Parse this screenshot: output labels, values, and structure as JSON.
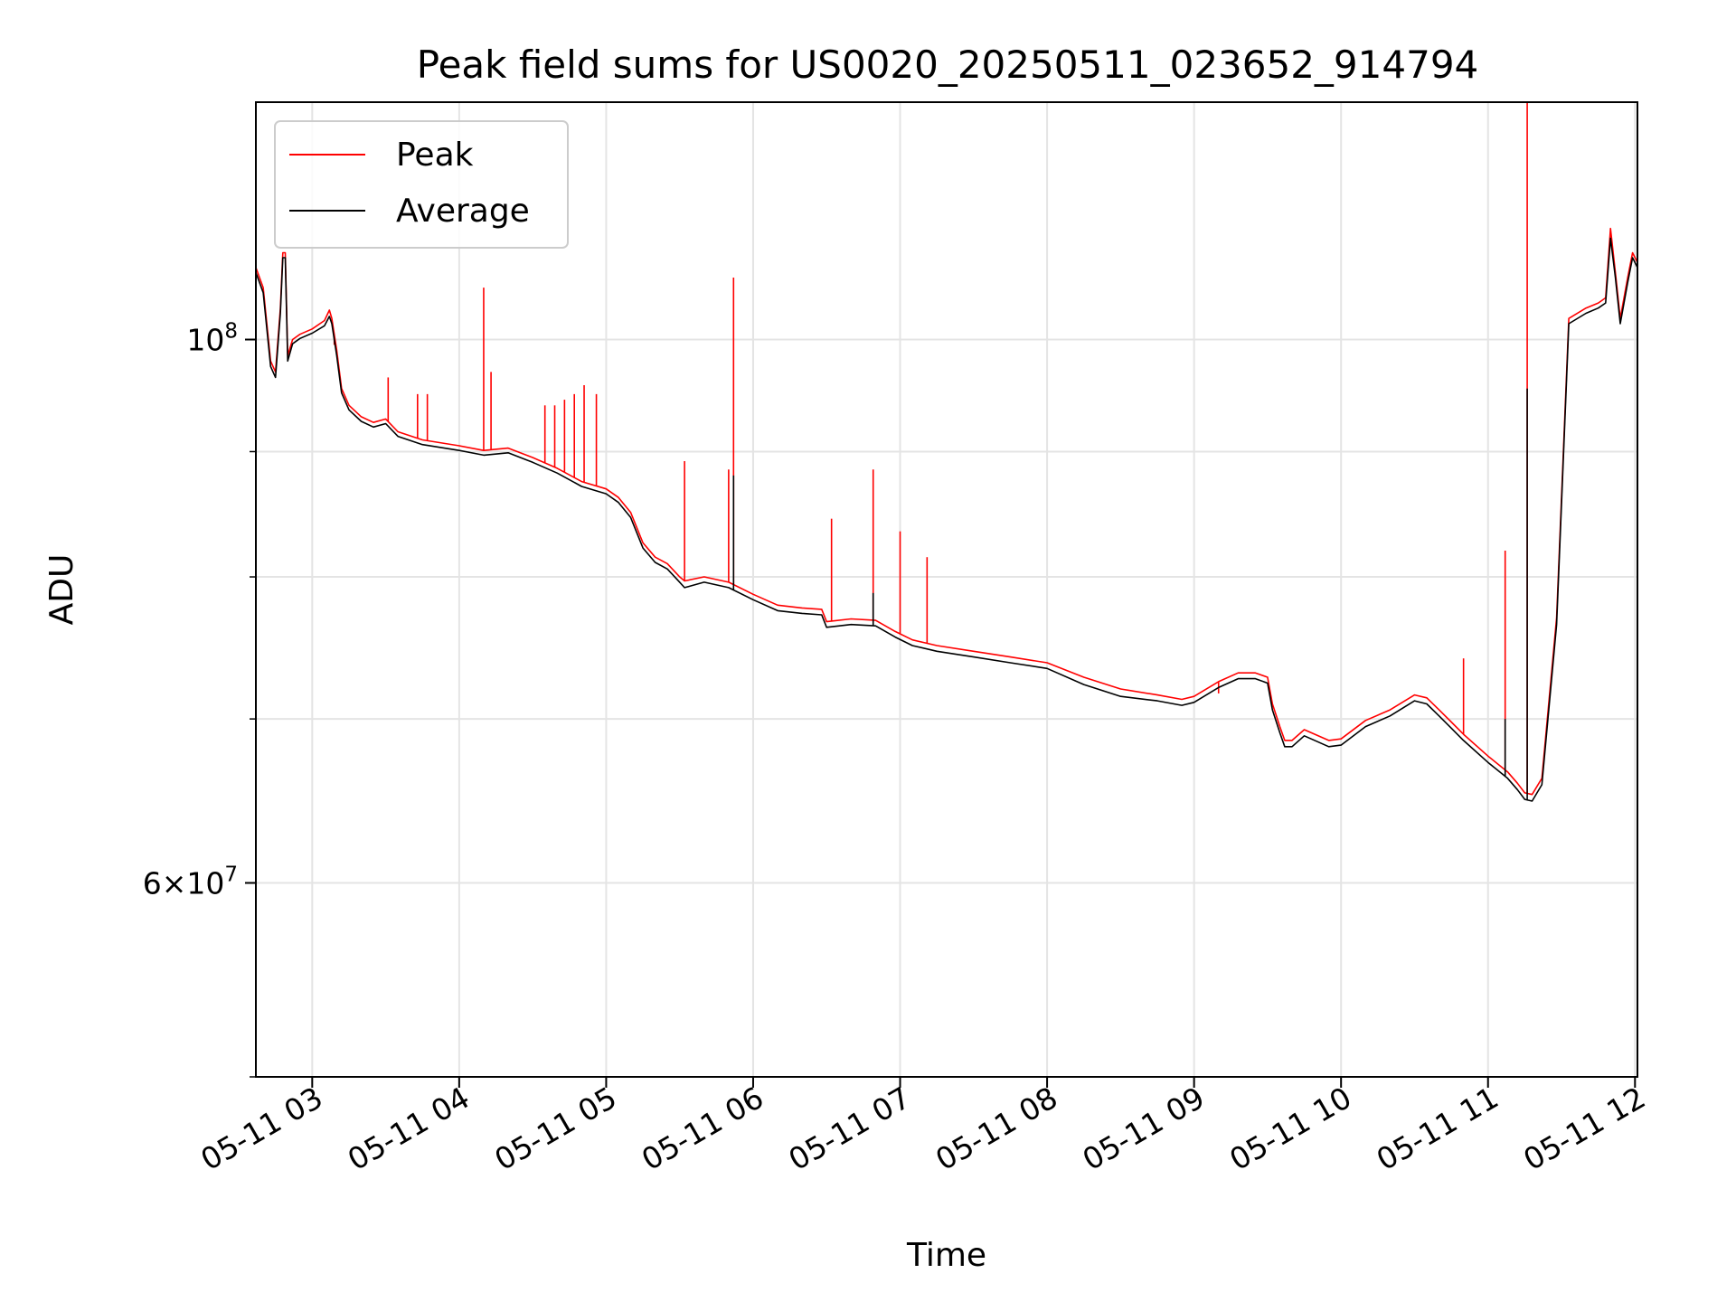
{
  "chart_data": {
    "type": "line",
    "title": "Peak field sums for US0020_20250511_023652_914794",
    "xlabel": "Time",
    "ylabel": "ADU",
    "yscale": "log",
    "ylim": [
      50000000,
      125000000
    ],
    "xlim": [
      "05-11 02:37",
      "05-11 12:01"
    ],
    "grid": true,
    "legend_position": "upper-left",
    "x_ticks": [
      "05-11 03",
      "05-11 04",
      "05-11 05",
      "05-11 06",
      "05-11 07",
      "05-11 08",
      "05-11 09",
      "05-11 10",
      "05-11 11",
      "05-11 12"
    ],
    "y_major_ticks": [
      {
        "value": 100000000,
        "base": "10",
        "exp": "8",
        "mant": ""
      },
      {
        "value": 60000000,
        "base": "10",
        "exp": "7",
        "mant": "6"
      }
    ],
    "y_minor_ticks": [
      50000000,
      60000000,
      70000000,
      80000000,
      90000000,
      100000000
    ],
    "series": [
      {
        "name": "Peak",
        "color": "#ff0000",
        "points": [
          [
            "05-11 02:37",
            107000000
          ],
          [
            "05-11 02:40",
            105000000
          ],
          [
            "05-11 02:43",
            98000000
          ],
          [
            "05-11 02:45",
            97000000
          ],
          [
            "05-11 02:47",
            103000000
          ],
          [
            "05-11 02:48",
            108500000
          ],
          [
            "05-11 02:49",
            108500000
          ],
          [
            "05-11 02:50",
            98500000
          ],
          [
            "05-11 02:52",
            100000000
          ],
          [
            "05-11 02:55",
            100500000
          ],
          [
            "05-11 03:00",
            101000000
          ],
          [
            "05-11 03:05",
            101800000
          ],
          [
            "05-11 03:07",
            102800000
          ],
          [
            "05-11 03:08",
            102000000
          ],
          [
            "05-11 03:10",
            99000000
          ],
          [
            "05-11 03:12",
            95500000
          ],
          [
            "05-11 03:15",
            94000000
          ],
          [
            "05-11 03:20",
            93000000
          ],
          [
            "05-11 03:25",
            92500000
          ],
          [
            "05-11 03:30",
            92800000
          ],
          [
            "05-11 03:35",
            91700000
          ],
          [
            "05-11 03:45",
            91000000
          ],
          [
            "05-11 04:00",
            90500000
          ],
          [
            "05-11 04:10",
            90100000
          ],
          [
            "05-11 04:20",
            90300000
          ],
          [
            "05-11 04:30",
            89500000
          ],
          [
            "05-11 04:40",
            88600000
          ],
          [
            "05-11 04:50",
            87500000
          ],
          [
            "05-11 05:00",
            86900000
          ],
          [
            "05-11 05:05",
            86200000
          ],
          [
            "05-11 05:10",
            85000000
          ],
          [
            "05-11 05:15",
            82600000
          ],
          [
            "05-11 05:20",
            81500000
          ],
          [
            "05-11 05:25",
            81000000
          ],
          [
            "05-11 05:30",
            80000000
          ],
          [
            "05-11 05:32",
            79700000
          ],
          [
            "05-11 05:40",
            80000000
          ],
          [
            "05-11 05:50",
            79600000
          ],
          [
            "05-11 06:00",
            78700000
          ],
          [
            "05-11 06:10",
            77900000
          ],
          [
            "05-11 06:20",
            77700000
          ],
          [
            "05-11 06:28",
            77600000
          ],
          [
            "05-11 06:30",
            76700000
          ],
          [
            "05-11 06:40",
            76900000
          ],
          [
            "05-11 06:50",
            76800000
          ],
          [
            "05-11 06:58",
            76000000
          ],
          [
            "05-11 07:05",
            75400000
          ],
          [
            "05-11 07:15",
            75000000
          ],
          [
            "05-11 07:30",
            74600000
          ],
          [
            "05-11 07:45",
            74200000
          ],
          [
            "05-11 08:00",
            73800000
          ],
          [
            "05-11 08:15",
            72800000
          ],
          [
            "05-11 08:30",
            72000000
          ],
          [
            "05-11 08:45",
            71600000
          ],
          [
            "05-11 08:55",
            71300000
          ],
          [
            "05-11 09:00",
            71500000
          ],
          [
            "05-11 09:10",
            72500000
          ],
          [
            "05-11 09:18",
            73100000
          ],
          [
            "05-11 09:25",
            73100000
          ],
          [
            "05-11 09:30",
            72800000
          ],
          [
            "05-11 09:32",
            71000000
          ],
          [
            "05-11 09:35",
            69500000
          ],
          [
            "05-11 09:37",
            68600000
          ],
          [
            "05-11 09:40",
            68600000
          ],
          [
            "05-11 09:45",
            69300000
          ],
          [
            "05-11 09:55",
            68600000
          ],
          [
            "05-11 10:00",
            68700000
          ],
          [
            "05-11 10:10",
            69900000
          ],
          [
            "05-11 10:20",
            70600000
          ],
          [
            "05-11 10:30",
            71600000
          ],
          [
            "05-11 10:35",
            71400000
          ],
          [
            "05-11 10:40",
            70600000
          ],
          [
            "05-11 10:45",
            69800000
          ],
          [
            "05-11 10:50",
            69000000
          ],
          [
            "05-11 11:00",
            67600000
          ],
          [
            "05-11 11:08",
            66600000
          ],
          [
            "05-11 11:12",
            65900000
          ],
          [
            "05-11 11:15",
            65300000
          ],
          [
            "05-11 11:18",
            65200000
          ],
          [
            "05-11 11:22",
            66200000
          ],
          [
            "05-11 11:28",
            77000000
          ],
          [
            "05-11 11:33",
            102000000
          ],
          [
            "05-11 11:40",
            103000000
          ],
          [
            "05-11 11:45",
            103500000
          ],
          [
            "05-11 11:48",
            104000000
          ],
          [
            "05-11 11:50",
            111000000
          ],
          [
            "05-11 11:52",
            106500000
          ],
          [
            "05-11 11:54",
            102000000
          ],
          [
            "05-11 11:57",
            106000000
          ],
          [
            "05-11 11:59",
            108500000
          ],
          [
            "05-11 12:01",
            107500000
          ]
        ],
        "spikes": [
          [
            "05-11 03:09",
            99500000
          ],
          [
            "05-11 03:31",
            96500000
          ],
          [
            "05-11 03:43",
            95000000
          ],
          [
            "05-11 03:47",
            95000000
          ],
          [
            "05-11 04:10",
            105000000
          ],
          [
            "05-11 04:13",
            97000000
          ],
          [
            "05-11 04:35",
            94000000
          ],
          [
            "05-11 04:39",
            94000000
          ],
          [
            "05-11 04:43",
            94500000
          ],
          [
            "05-11 04:47",
            95000000
          ],
          [
            "05-11 04:51",
            95800000
          ],
          [
            "05-11 04:56",
            95000000
          ],
          [
            "05-11 05:32",
            89200000
          ],
          [
            "05-11 05:50",
            88500000
          ],
          [
            "05-11 05:52",
            106000000
          ],
          [
            "05-11 06:32",
            84500000
          ],
          [
            "05-11 06:49",
            88500000
          ],
          [
            "05-11 07:00",
            83500000
          ],
          [
            "05-11 07:11",
            81500000
          ],
          [
            "05-11 09:10",
            71700000
          ],
          [
            "05-11 10:50",
            74100000
          ],
          [
            "05-11 11:07",
            82000000
          ],
          [
            "05-11 11:16",
            125000000
          ]
        ]
      },
      {
        "name": "Average",
        "color": "#000000",
        "points": [
          [
            "05-11 02:37",
            106500000
          ],
          [
            "05-11 02:40",
            104500000
          ],
          [
            "05-11 02:43",
            97500000
          ],
          [
            "05-11 02:45",
            96500000
          ],
          [
            "05-11 02:47",
            102500000
          ],
          [
            "05-11 02:48",
            108000000
          ],
          [
            "05-11 02:49",
            108000000
          ],
          [
            "05-11 02:50",
            98000000
          ],
          [
            "05-11 02:52",
            99600000
          ],
          [
            "05-11 02:55",
            100100000
          ],
          [
            "05-11 03:00",
            100600000
          ],
          [
            "05-11 03:05",
            101300000
          ],
          [
            "05-11 03:07",
            102200000
          ],
          [
            "05-11 03:08",
            101500000
          ],
          [
            "05-11 03:10",
            98500000
          ],
          [
            "05-11 03:12",
            95100000
          ],
          [
            "05-11 03:15",
            93600000
          ],
          [
            "05-11 03:20",
            92600000
          ],
          [
            "05-11 03:25",
            92100000
          ],
          [
            "05-11 03:30",
            92400000
          ],
          [
            "05-11 03:35",
            91300000
          ],
          [
            "05-11 03:45",
            90600000
          ],
          [
            "05-11 04:00",
            90100000
          ],
          [
            "05-11 04:10",
            89700000
          ],
          [
            "05-11 04:20",
            89900000
          ],
          [
            "05-11 04:30",
            89100000
          ],
          [
            "05-11 04:40",
            88200000
          ],
          [
            "05-11 04:50",
            87100000
          ],
          [
            "05-11 05:00",
            86500000
          ],
          [
            "05-11 05:05",
            85800000
          ],
          [
            "05-11 05:10",
            84600000
          ],
          [
            "05-11 05:15",
            82200000
          ],
          [
            "05-11 05:20",
            81100000
          ],
          [
            "05-11 05:25",
            80600000
          ],
          [
            "05-11 05:30",
            79600000
          ],
          [
            "05-11 05:32",
            79200000
          ],
          [
            "05-11 05:40",
            79600000
          ],
          [
            "05-11 05:50",
            79200000
          ],
          [
            "05-11 06:00",
            78300000
          ],
          [
            "05-11 06:10",
            77500000
          ],
          [
            "05-11 06:20",
            77300000
          ],
          [
            "05-11 06:28",
            77200000
          ],
          [
            "05-11 06:30",
            76300000
          ],
          [
            "05-11 06:40",
            76500000
          ],
          [
            "05-11 06:50",
            76400000
          ],
          [
            "05-11 06:58",
            75600000
          ],
          [
            "05-11 07:05",
            75000000
          ],
          [
            "05-11 07:15",
            74600000
          ],
          [
            "05-11 07:30",
            74200000
          ],
          [
            "05-11 07:45",
            73800000
          ],
          [
            "05-11 08:00",
            73400000
          ],
          [
            "05-11 08:15",
            72300000
          ],
          [
            "05-11 08:30",
            71500000
          ],
          [
            "05-11 08:45",
            71200000
          ],
          [
            "05-11 08:55",
            70900000
          ],
          [
            "05-11 09:00",
            71100000
          ],
          [
            "05-11 09:10",
            72100000
          ],
          [
            "05-11 09:18",
            72700000
          ],
          [
            "05-11 09:25",
            72700000
          ],
          [
            "05-11 09:30",
            72400000
          ],
          [
            "05-11 09:32",
            70600000
          ],
          [
            "05-11 09:35",
            69100000
          ],
          [
            "05-11 09:37",
            68200000
          ],
          [
            "05-11 09:40",
            68200000
          ],
          [
            "05-11 09:45",
            68900000
          ],
          [
            "05-11 09:55",
            68200000
          ],
          [
            "05-11 10:00",
            68300000
          ],
          [
            "05-11 10:10",
            69500000
          ],
          [
            "05-11 10:20",
            70200000
          ],
          [
            "05-11 10:30",
            71200000
          ],
          [
            "05-11 10:35",
            71000000
          ],
          [
            "05-11 10:40",
            70200000
          ],
          [
            "05-11 10:45",
            69400000
          ],
          [
            "05-11 10:50",
            68600000
          ],
          [
            "05-11 11:00",
            67200000
          ],
          [
            "05-11 11:08",
            66200000
          ],
          [
            "05-11 11:12",
            65500000
          ],
          [
            "05-11 11:15",
            64900000
          ],
          [
            "05-11 11:18",
            64800000
          ],
          [
            "05-11 11:22",
            65800000
          ],
          [
            "05-11 11:28",
            76500000
          ],
          [
            "05-11 11:33",
            101500000
          ],
          [
            "05-11 11:40",
            102500000
          ],
          [
            "05-11 11:45",
            103000000
          ],
          [
            "05-11 11:48",
            103500000
          ],
          [
            "05-11 11:50",
            110000000
          ],
          [
            "05-11 11:52",
            106000000
          ],
          [
            "05-11 11:54",
            101500000
          ],
          [
            "05-11 11:57",
            105500000
          ],
          [
            "05-11 11:59",
            108000000
          ],
          [
            "05-11 12:01",
            107000000
          ]
        ],
        "spikes": [
          [
            "05-11 05:52",
            88000000
          ],
          [
            "05-11 06:49",
            78800000
          ],
          [
            "05-11 11:07",
            70000000
          ],
          [
            "05-11 11:16",
            95500000
          ]
        ]
      }
    ]
  }
}
